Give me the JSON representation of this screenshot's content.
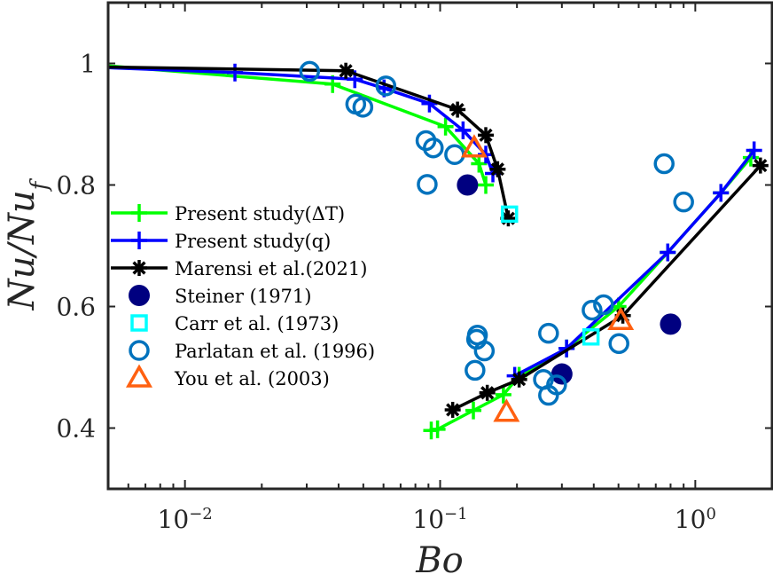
{
  "chart_data": {
    "type": "scatter",
    "title": "",
    "xlabel": "Bo",
    "ylabel": "Nu/Nu_f",
    "xscale": "log",
    "xlim": [
      0.005,
      2.0
    ],
    "ylim": [
      0.3,
      1.1
    ],
    "xticks": [
      0.01,
      0.1,
      1
    ],
    "xtick_labels": [
      {
        "base": "10",
        "exp": "−2"
      },
      {
        "base": "10",
        "exp": "−1"
      },
      {
        "base": "10",
        "exp": "0"
      }
    ],
    "yticks": [
      0.4,
      0.6,
      0.8,
      1.0
    ],
    "ytick_labels": [
      "0.4",
      "0.6",
      "0.8",
      "1"
    ],
    "grid": false,
    "legend_position": "left",
    "series": [
      {
        "name": "Present study(ΔT)",
        "legend_label": "Present study(ΔT)",
        "kind": "line",
        "marker": "plus",
        "color": "#00ff00",
        "segments": [
          [
            [
              0.005,
              0.996
            ],
            [
              0.0379,
              0.966
            ],
            [
              0.105,
              0.896
            ],
            [
              0.142,
              0.835
            ],
            [
              0.151,
              0.8
            ]
          ],
          [
            [
              0.0923,
              0.396
            ],
            [
              0.0977,
              0.398
            ],
            [
              0.135,
              0.429
            ],
            [
              0.177,
              0.455
            ],
            [
              0.204,
              0.486
            ],
            [
              0.313,
              0.531
            ],
            [
              0.5,
              0.6
            ],
            [
              0.78,
              0.689
            ],
            [
              1.26,
              0.787
            ],
            [
              1.65,
              0.845
            ]
          ]
        ]
      },
      {
        "name": "Present study(q)",
        "legend_label": "Present study(q)",
        "kind": "line",
        "marker": "plus",
        "color": "#0000ff",
        "segments": [
          [
            [
              0.005,
              0.993
            ],
            [
              0.0157,
              0.985
            ],
            [
              0.0463,
              0.974
            ],
            [
              0.0603,
              0.959
            ],
            [
              0.0908,
              0.934
            ],
            [
              0.123,
              0.89
            ],
            [
              0.151,
              0.85
            ],
            [
              0.161,
              0.819
            ]
          ],
          [
            [
              0.196,
              0.486
            ],
            [
              0.313,
              0.531
            ],
            [
              0.78,
              0.689
            ],
            [
              1.26,
              0.787
            ],
            [
              1.7,
              0.857
            ]
          ]
        ]
      },
      {
        "name": "Marensi et al.(2021)",
        "legend_label": "Marensi et al.(2021)",
        "kind": "line",
        "marker": "asterisk",
        "color": "#000000",
        "segments": [
          [
            [
              0.005,
              0.994
            ],
            [
              0.0427,
              0.988
            ],
            [
              0.117,
              0.924
            ],
            [
              0.151,
              0.882
            ],
            [
              0.168,
              0.826
            ],
            [
              0.185,
              0.745
            ]
          ],
          [
            [
              0.112,
              0.43
            ],
            [
              0.153,
              0.458
            ],
            [
              0.204,
              0.48
            ],
            [
              0.52,
              0.585
            ],
            [
              1.8,
              0.832
            ]
          ]
        ]
      },
      {
        "name": "Steiner (1971)",
        "legend_label": "Steiner (1971)",
        "kind": "scatter",
        "marker": "filled-circle",
        "color": "#000080",
        "points": [
          [
            0.128,
            0.8
          ],
          [
            0.3,
            0.489
          ],
          [
            0.8,
            0.571
          ]
        ]
      },
      {
        "name": "Carr et al. (1973)",
        "legend_label": "Carr et al. (1973)",
        "kind": "scatter",
        "marker": "square",
        "color": "#00ffff",
        "points": [
          [
            0.187,
            0.752
          ],
          [
            0.39,
            0.55
          ]
        ]
      },
      {
        "name": "Parlatan et al. (1996)",
        "legend_label": "Parlatan et al. (1996)",
        "kind": "scatter",
        "marker": "open-circle",
        "color": "#0072bd",
        "points": [
          [
            0.0308,
            0.987
          ],
          [
            0.0467,
            0.933
          ],
          [
            0.0498,
            0.928
          ],
          [
            0.0613,
            0.963
          ],
          [
            0.088,
            0.873
          ],
          [
            0.094,
            0.861
          ],
          [
            0.114,
            0.85
          ],
          [
            0.089,
            0.801
          ],
          [
            0.139,
            0.546
          ],
          [
            0.14,
            0.553
          ],
          [
            0.149,
            0.527
          ],
          [
            0.137,
            0.495
          ],
          [
            0.266,
            0.556
          ],
          [
            0.394,
            0.594
          ],
          [
            0.437,
            0.603
          ],
          [
            0.502,
            0.539
          ],
          [
            0.254,
            0.48
          ],
          [
            0.286,
            0.471
          ],
          [
            0.266,
            0.454
          ],
          [
            0.755,
            0.835
          ],
          [
            0.9,
            0.772
          ]
        ]
      },
      {
        "name": "You et al. (2003)",
        "legend_label": "You et al. (2003)",
        "kind": "scatter",
        "marker": "triangle",
        "color": "#ff6010",
        "points": [
          [
            0.136,
            0.861
          ],
          [
            0.182,
            0.426
          ],
          [
            0.51,
            0.577
          ]
        ]
      }
    ]
  }
}
